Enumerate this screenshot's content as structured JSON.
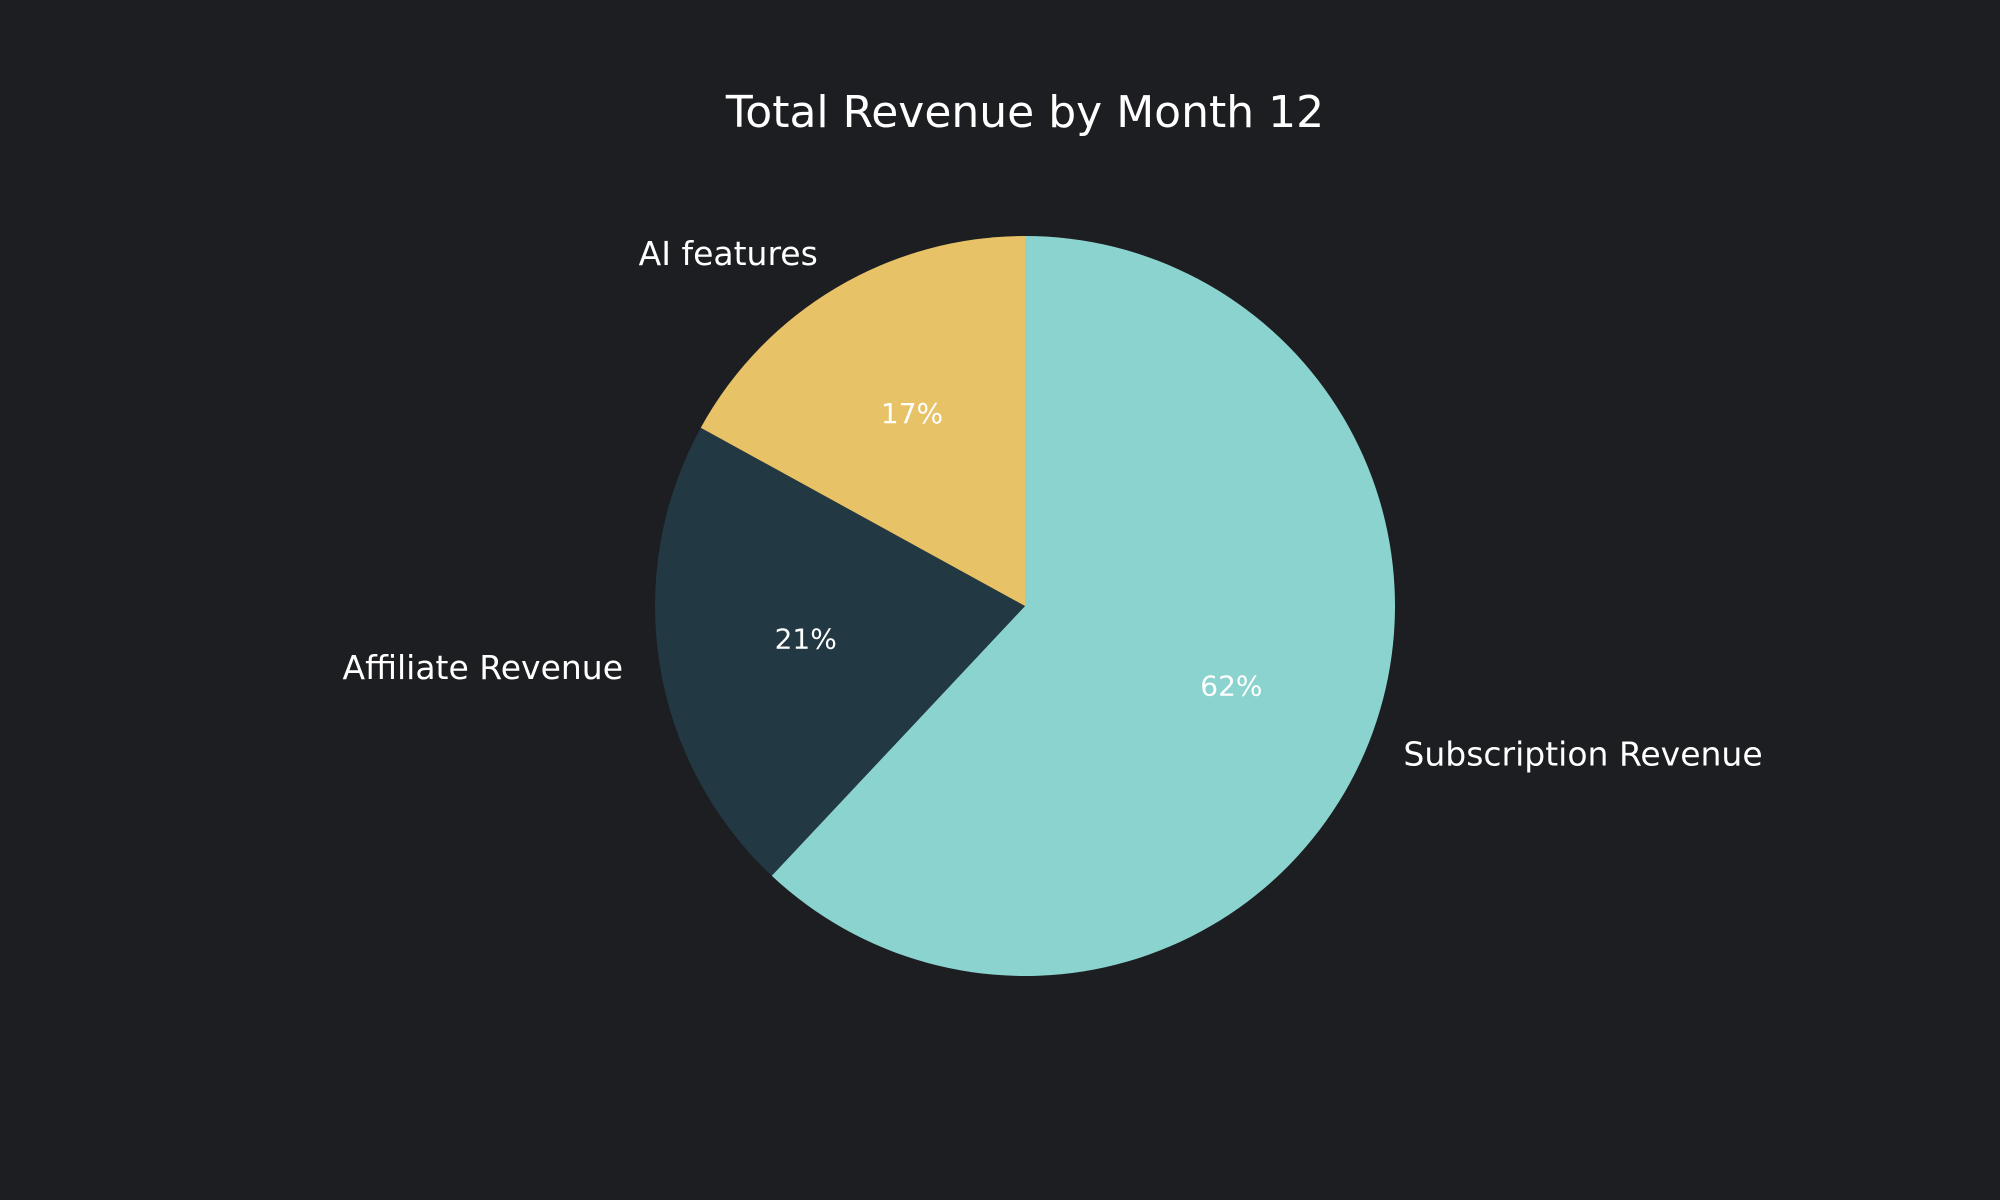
{
  "chart_data": {
    "type": "pie",
    "title": "Total Revenue by Month 12",
    "start": "top",
    "direction": "clockwise",
    "slices": [
      {
        "label": "Subscription Revenue",
        "value": 62,
        "pct_label": "62%",
        "color": "#8bd3cf"
      },
      {
        "label": "Affiliate Revenue",
        "value": 21,
        "pct_label": "21%",
        "color": "#223843"
      },
      {
        "label": "AI features",
        "value": 17,
        "pct_label": "17%",
        "color": "#e8c267"
      }
    ]
  }
}
